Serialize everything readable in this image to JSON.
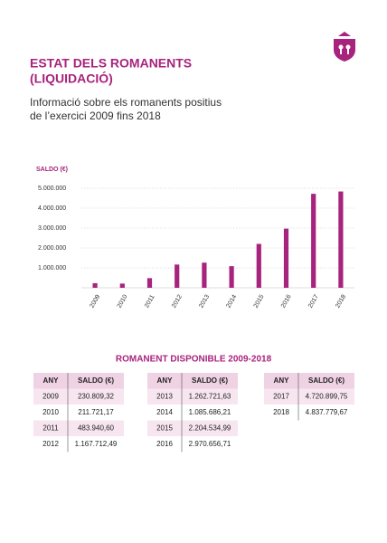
{
  "header": {
    "title": [
      "ESTAT DELS ROMANENTS",
      "(LIQUIDACIÓ)"
    ],
    "subtitle": [
      "Informació sobre els romanents positius",
      "de l’exercici 2009 fins 2018"
    ]
  },
  "chart_data": {
    "type": "bar",
    "y_label": "SALDO (€)",
    "categories": [
      "2009",
      "2010",
      "2011",
      "2012",
      "2013",
      "2014",
      "2015",
      "2016",
      "2017",
      "2018"
    ],
    "values": [
      230809.32,
      211721.17,
      483940.6,
      1167712.49,
      1262721.63,
      1085686.21,
      2204534.99,
      2970656.71,
      4720899.75,
      4837779.67
    ],
    "color": "#a8237d",
    "ylim": [
      0,
      5500000
    ],
    "yticks": [
      {
        "value": 1000000,
        "label": "1.000.000"
      },
      {
        "value": 2000000,
        "label": "2.000.000"
      },
      {
        "value": 3000000,
        "label": "3.000.000"
      },
      {
        "value": 4000000,
        "label": "4.000.000"
      },
      {
        "value": 5000000,
        "label": "5.000.000"
      }
    ],
    "grid": true
  },
  "tables": {
    "title": "ROMANENT DISPONIBLE 2009-2018",
    "columns": [
      "ANY",
      "SALDO (€)"
    ],
    "groups": [
      [
        [
          "2009",
          "230.809,32"
        ],
        [
          "2010",
          "211.721,17"
        ],
        [
          "2011",
          "483.940,60"
        ],
        [
          "2012",
          "1.167.712,49"
        ]
      ],
      [
        [
          "2013",
          "1.262.721,63"
        ],
        [
          "2014",
          "1.085.686,21"
        ],
        [
          "2015",
          "2.204.534,99"
        ],
        [
          "2016",
          "2.970.656,71"
        ]
      ],
      [
        [
          "2017",
          "4.720.899,75"
        ],
        [
          "2018",
          "4.837.779,67"
        ]
      ]
    ]
  }
}
